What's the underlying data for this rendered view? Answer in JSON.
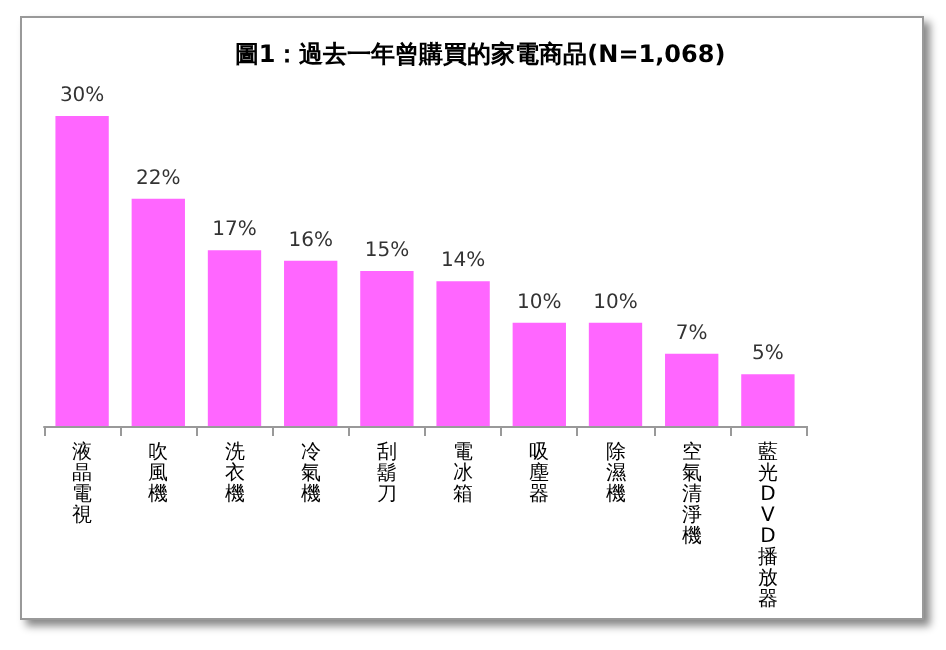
{
  "chart_data": {
    "type": "bar",
    "title": "圖1：過去一年曾購買的家電商品(N=1,068)",
    "categories": [
      "液晶電視",
      "吹風機",
      "洗衣機",
      "冷氣機",
      "刮鬍刀",
      "電冰箱",
      "吸塵器",
      "除濕機",
      "空氣清淨機",
      "藍光DVD播放器"
    ],
    "values": [
      30,
      22,
      17,
      16,
      15,
      14,
      10,
      10,
      7,
      5
    ],
    "value_labels": [
      "30%",
      "22%",
      "17%",
      "16%",
      "15%",
      "14%",
      "10%",
      "10%",
      "7%",
      "5%"
    ],
    "color": "#ff66ff"
  }
}
